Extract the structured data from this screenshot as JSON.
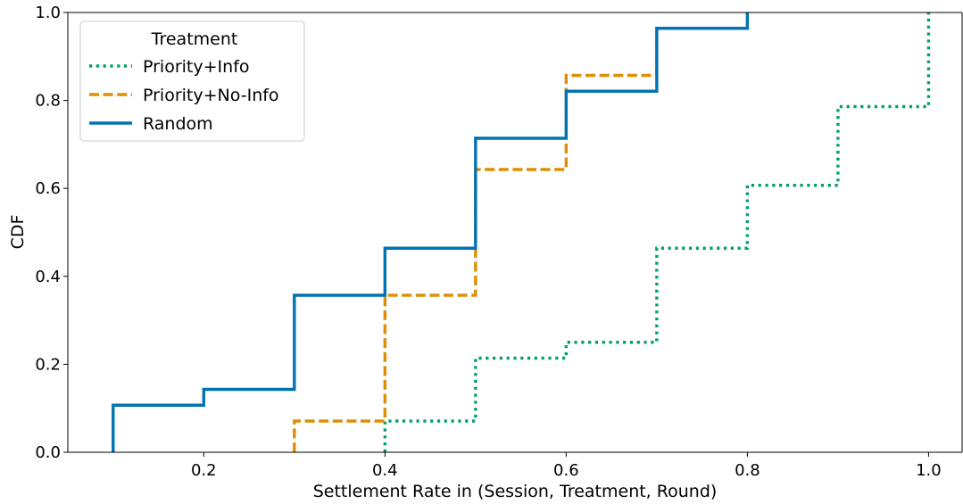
{
  "chart_data": {
    "type": "line",
    "subtype": "step-cdf",
    "xlabel": "Settlement Rate in (Session, Treatment, Round)",
    "ylabel": "CDF",
    "xlim": [
      0.05,
      1.037
    ],
    "ylim": [
      0.0,
      1.0
    ],
    "xticks": [
      0.2,
      0.4,
      0.6,
      0.8,
      1.0
    ],
    "xtick_labels": [
      "0.2",
      "0.4",
      "0.6",
      "0.8",
      "1.0"
    ],
    "yticks": [
      0.0,
      0.2,
      0.4,
      0.6,
      0.8,
      1.0
    ],
    "ytick_labels": [
      "0.0",
      "0.2",
      "0.4",
      "0.6",
      "0.8",
      "1.0"
    ],
    "grid": false,
    "legend": {
      "title": "Treatment",
      "position": "top-left"
    },
    "series": [
      {
        "name": "Priority+Info",
        "color": "#029e73",
        "style": "dotted",
        "x": [
          0.4,
          0.5,
          0.6,
          0.7,
          0.8,
          0.9,
          1.0
        ],
        "y": [
          0.071,
          0.214,
          0.25,
          0.464,
          0.607,
          0.786,
          1.0
        ]
      },
      {
        "name": "Priority+No-Info",
        "color": "#de8f05",
        "style": "dashed",
        "x": [
          0.3,
          0.4,
          0.5,
          0.6,
          0.7,
          0.8
        ],
        "y": [
          0.071,
          0.357,
          0.643,
          0.857,
          0.964,
          1.0
        ]
      },
      {
        "name": "Random",
        "color": "#0173b2",
        "style": "solid",
        "x": [
          0.1,
          0.2,
          0.3,
          0.4,
          0.5,
          0.6,
          0.7,
          0.8
        ],
        "y": [
          0.107,
          0.143,
          0.357,
          0.464,
          0.714,
          0.821,
          0.964,
          1.0
        ]
      }
    ]
  }
}
